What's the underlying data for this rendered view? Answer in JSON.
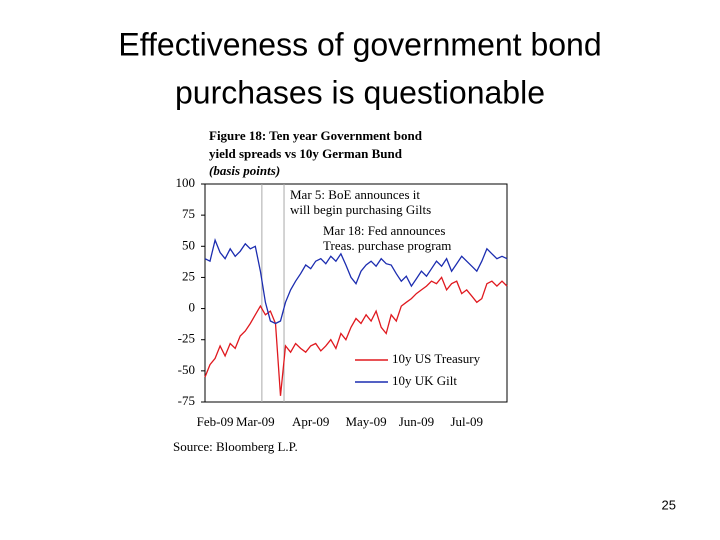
{
  "slide": {
    "title": [
      "Effectiveness of government bond",
      "purchases is questionable"
    ],
    "page_number": "25"
  },
  "chart_data": {
    "type": "line",
    "title": [
      "Figure 18: Ten year Government bond",
      "yield spreads vs 10y German Bund"
    ],
    "subtitle": "(basis points)",
    "source": "Source: Bloomberg L.P.",
    "annotations": [
      [
        "Mar 5: BoE announces it",
        "will begin purchasing Gilts"
      ],
      [
        "Mar 18: Fed announces",
        "Treas. purchase program"
      ]
    ],
    "categories": [
      null,
      null,
      "Feb-09",
      null,
      null,
      null,
      null,
      null,
      null,
      null,
      "Mar-09",
      null,
      null,
      null,
      null,
      null,
      null,
      null,
      null,
      null,
      null,
      "Apr-09",
      null,
      null,
      null,
      null,
      null,
      null,
      null,
      null,
      null,
      null,
      "May-09",
      null,
      null,
      null,
      null,
      null,
      null,
      null,
      null,
      null,
      "Jun-09",
      null,
      null,
      null,
      null,
      null,
      null,
      null,
      null,
      null,
      "Jul-09",
      null,
      null,
      null,
      null,
      null,
      null,
      null,
      null
    ],
    "series": [
      {
        "name": "10y US Treasury",
        "color": "#e0191f",
        "values": [
          -55,
          -45,
          -40,
          -30,
          -38,
          -28,
          -32,
          -22,
          -18,
          -12,
          -5,
          2,
          -5,
          -2,
          -12,
          -70,
          -30,
          -35,
          -28,
          -32,
          -35,
          -30,
          -28,
          -34,
          -30,
          -25,
          -32,
          -20,
          -25,
          -15,
          -8,
          -12,
          -5,
          -10,
          -2,
          -15,
          -20,
          -5,
          -10,
          2,
          5,
          8,
          12,
          15,
          18,
          22,
          20,
          25,
          15,
          20,
          22,
          12,
          15,
          10,
          5,
          8,
          20,
          22,
          18,
          22,
          18
        ]
      },
      {
        "name": "10y UK Gilt",
        "color": "#1c2db0",
        "values": [
          40,
          38,
          55,
          45,
          40,
          48,
          42,
          46,
          52,
          48,
          50,
          30,
          5,
          -10,
          -12,
          -10,
          5,
          15,
          22,
          28,
          35,
          32,
          38,
          40,
          36,
          42,
          38,
          44,
          35,
          25,
          20,
          30,
          35,
          38,
          34,
          40,
          36,
          35,
          28,
          22,
          26,
          18,
          24,
          30,
          26,
          32,
          38,
          34,
          40,
          30,
          36,
          42,
          38,
          34,
          30,
          38,
          48,
          44,
          40,
          42,
          40
        ]
      }
    ],
    "ylim": [
      -75,
      100
    ],
    "yticks": [
      -75,
      -50,
      -25,
      0,
      25,
      50,
      75,
      100
    ],
    "legend": "lower right",
    "grid": false
  }
}
